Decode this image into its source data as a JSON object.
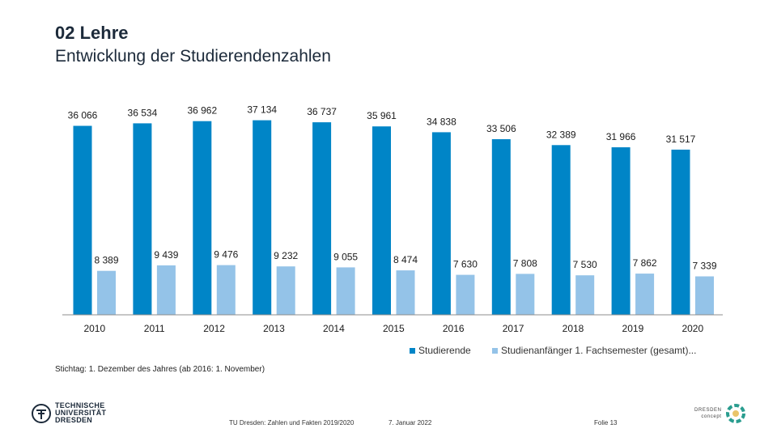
{
  "header": {
    "title": "02 Lehre",
    "subtitle": "Entwicklung der Studierendenzahlen"
  },
  "colors": {
    "studierende": "#0085C7",
    "anfaenger": "#94C3E8",
    "axis": "#8c8c8c",
    "text": "#1a1a1a"
  },
  "chart_data": {
    "type": "bar",
    "title": "Entwicklung der Studierendenzahlen",
    "xlabel": "",
    "ylabel": "",
    "ylim": [
      0,
      40000
    ],
    "grid": false,
    "legend_position": "bottom-right",
    "categories": [
      "2010",
      "2011",
      "2012",
      "2013",
      "2014",
      "2015",
      "2016",
      "2017",
      "2018",
      "2019",
      "2020"
    ],
    "series": [
      {
        "name": "Studierende",
        "values": [
          36066,
          36534,
          36962,
          37134,
          36737,
          35961,
          34838,
          33506,
          32389,
          31966,
          31517
        ],
        "labels": [
          "36 066",
          "36 534",
          "36 962",
          "37 134",
          "36 737",
          "35 961",
          "34 838",
          "33 506",
          "32 389",
          "31 966",
          "31 517"
        ]
      },
      {
        "name": "Studienanfänger 1. Fachsemester (gesamt)...",
        "values": [
          8389,
          9439,
          9476,
          9232,
          9055,
          8474,
          7630,
          7808,
          7530,
          7862,
          7339
        ],
        "labels": [
          "8 389",
          "9 439",
          "9 476",
          "9 232",
          "9 055",
          "8 474",
          "7 630",
          "7 808",
          "7 530",
          "7 862",
          "7 339"
        ]
      }
    ]
  },
  "footnote": "Stichtag: 1. Dezember des Jahres (ab 2016: 1. November)",
  "footer": {
    "source": "TU Dresden: Zahlen und Fakten 2019/2020",
    "date": "7. Januar 2022",
    "slide": "Folie 13"
  },
  "logos": {
    "tud_lines": [
      "TECHNISCHE",
      "UNIVERSITÄT",
      "DRESDEN"
    ],
    "dc_lines": [
      "DRESDEN",
      "concept"
    ]
  }
}
